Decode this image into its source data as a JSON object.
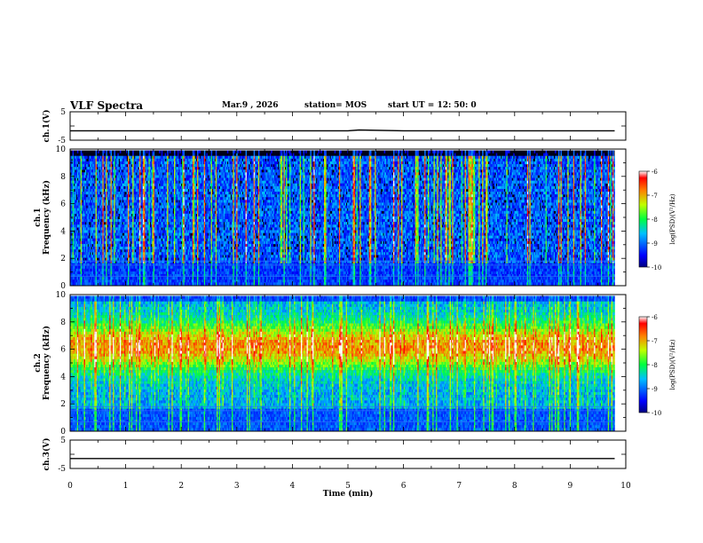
{
  "header": {
    "title": "VLF Spectra",
    "date": "Mar.9  , 2026",
    "station": "station= MOS",
    "start": "start  UT =   12: 50: 0"
  },
  "chart_data": [
    {
      "type": "line",
      "name": "ch1_waveform",
      "ylabel": "ch.1(V)",
      "ylim": [
        -5,
        5
      ],
      "yticks": [
        "5",
        "-5"
      ],
      "xlim": [
        0,
        10
      ],
      "x": [
        0,
        1,
        2,
        3,
        4,
        5,
        5.2,
        6,
        7,
        8,
        9,
        9.8
      ],
      "y": [
        -1.7,
        -1.7,
        -1.7,
        -1.7,
        -1.7,
        -1.7,
        -1.4,
        -1.7,
        -1.7,
        -1.7,
        -1.7,
        -1.7
      ]
    },
    {
      "type": "heatmap",
      "name": "ch1_spectrogram",
      "ylabel": "ch.1\nFrequency (kHz)",
      "ylim": [
        0,
        10
      ],
      "yticks": [
        "0",
        "2",
        "4",
        "6",
        "8",
        "10"
      ],
      "xlim": [
        0,
        10
      ],
      "data_end_min": 9.8,
      "colorbar": {
        "label": "log(PSD)(V²/Hz)",
        "range": [
          -10,
          -6
        ],
        "ticks": [
          "-6",
          "-7",
          "-8",
          "-9",
          "-10"
        ]
      }
    },
    {
      "type": "heatmap",
      "name": "ch2_spectrogram",
      "ylabel": "ch.2\nFrequency (kHz)",
      "ylim": [
        0,
        10
      ],
      "yticks": [
        "0",
        "2",
        "4",
        "6",
        "8",
        "10"
      ],
      "xlim": [
        0,
        10
      ],
      "data_end_min": 9.8,
      "colorbar": {
        "label": "log(PSD)(V²/Hz)",
        "range": [
          -10,
          -6
        ],
        "ticks": [
          "-6",
          "-7",
          "-8",
          "-9",
          "-10"
        ]
      }
    },
    {
      "type": "line",
      "name": "ch3_waveform",
      "ylabel": "ch.3(V)",
      "ylim": [
        -5,
        5
      ],
      "yticks": [
        "5",
        "-5"
      ],
      "xlim": [
        0,
        10
      ],
      "xlabel": "Time  (min)",
      "xticks": [
        "0",
        "1",
        "2",
        "3",
        "4",
        "5",
        "6",
        "7",
        "8",
        "9",
        "10"
      ],
      "x": [
        0,
        1,
        2,
        3,
        4,
        5,
        6,
        7,
        8,
        9,
        9.8
      ],
      "y": [
        -1.5,
        -1.5,
        -1.5,
        -1.5,
        -1.5,
        -1.5,
        -1.5,
        -1.5,
        -1.5,
        -1.5,
        -1.5
      ]
    }
  ]
}
